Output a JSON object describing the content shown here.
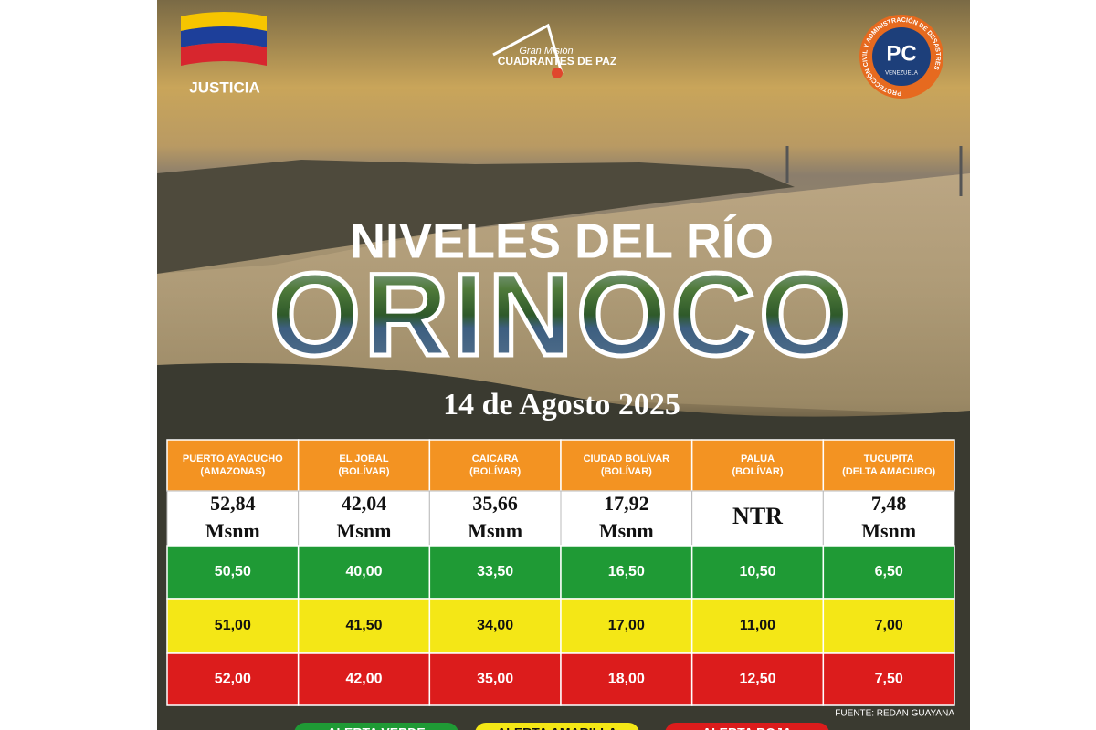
{
  "header": {
    "left_logo": "JUSTICIA",
    "center_logo": {
      "line1": "Gran Misión",
      "line2": "CUADRANTES DE PAZ"
    },
    "right_logo": {
      "initials": "PC",
      "ring": "PROTECCIÓN CIVIL Y ADMINISTRACIÓN DE DESASTRES",
      "country": "VENEZUELA"
    }
  },
  "title": {
    "line1": "NIVELES DEL RÍO",
    "line2": "ORINOCO",
    "date": "14 de Agosto 2025"
  },
  "table": {
    "columns": [
      {
        "name": "PUERTO AYACUCHO",
        "region": "(AMAZONAS)"
      },
      {
        "name": "EL JOBAL",
        "region": "(BOLÍVAR)"
      },
      {
        "name": "CAICARA",
        "region": "(BOLÍVAR)"
      },
      {
        "name": "CIUDAD BOLÍVAR",
        "region": "(BOLÍVAR)"
      },
      {
        "name": "PALUA",
        "region": "(BOLÍVAR)"
      },
      {
        "name": "TUCUPITA",
        "region": "(DELTA AMACURO)"
      }
    ],
    "current": [
      {
        "value": "52,84",
        "unit": "Msnm"
      },
      {
        "value": "42,04",
        "unit": "Msnm"
      },
      {
        "value": "35,66",
        "unit": "Msnm"
      },
      {
        "value": "17,92",
        "unit": "Msnm"
      },
      {
        "value": "NTR"
      },
      {
        "value": "7,48",
        "unit": "Msnm"
      }
    ],
    "green": [
      "50,50",
      "40,00",
      "33,50",
      "16,50",
      "10,50",
      "6,50"
    ],
    "yellow": [
      "51,00",
      "41,50",
      "34,00",
      "17,00",
      "11,00",
      "7,00"
    ],
    "red": [
      "52,00",
      "42,00",
      "35,00",
      "18,00",
      "12,50",
      "7,50"
    ]
  },
  "source": "FUENTE: REDAN GUAYANA",
  "legend": [
    "ALERTA VERDE",
    "ALERTA AMARILLA",
    "ALERTA ROJA"
  ]
}
